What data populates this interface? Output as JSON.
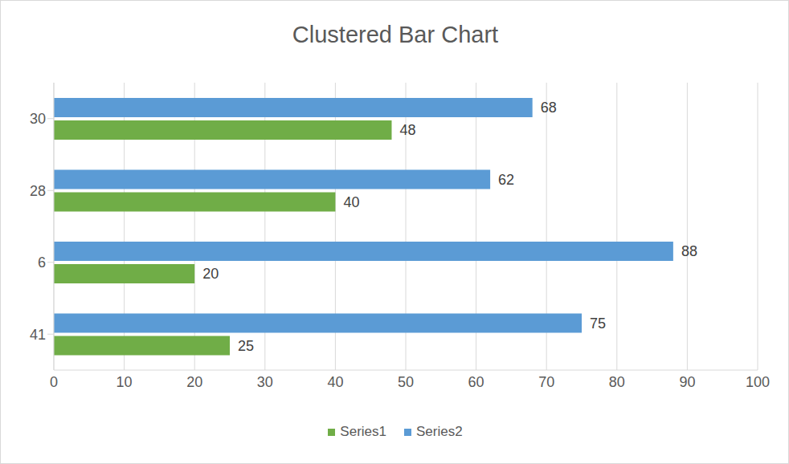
{
  "chart_data": {
    "type": "bar",
    "title": "Clustered Bar Chart",
    "orientation": "horizontal",
    "categories": [
      "30",
      "28",
      "6",
      "41"
    ],
    "series": [
      {
        "name": "Series1",
        "color": "#70ad47",
        "values": [
          48,
          40,
          20,
          25
        ]
      },
      {
        "name": "Series2",
        "color": "#5b9bd5",
        "values": [
          68,
          62,
          88,
          75
        ]
      }
    ],
    "xlim": [
      0,
      100
    ],
    "xticks": [
      0,
      10,
      20,
      30,
      40,
      50,
      60,
      70,
      80,
      90,
      100
    ],
    "grid": true,
    "data_labels": true,
    "legend": "bottom"
  }
}
